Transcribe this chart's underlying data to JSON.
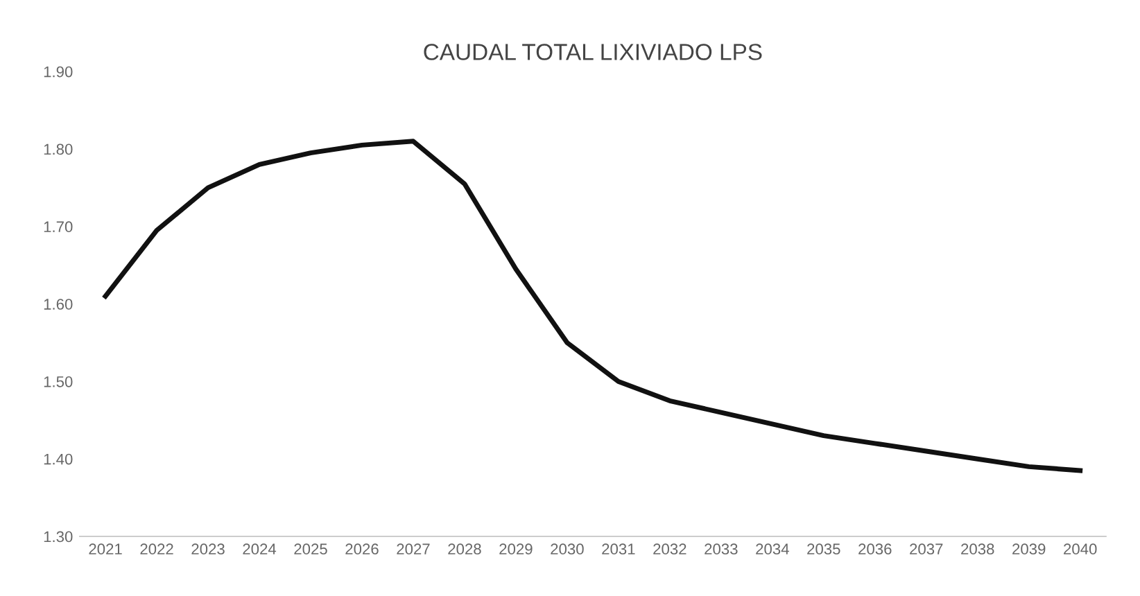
{
  "chart_data": {
    "type": "line",
    "title": "CAUDAL TOTAL LIXIVIADO LPS",
    "categories": [
      "2021",
      "2022",
      "2023",
      "2024",
      "2025",
      "2026",
      "2027",
      "2028",
      "2029",
      "2030",
      "2031",
      "2032",
      "2033",
      "2034",
      "2035",
      "2036",
      "2037",
      "2038",
      "2039",
      "2040"
    ],
    "series": [
      {
        "color": "#111111",
        "values": [
          1.61,
          1.695,
          1.75,
          1.78,
          1.795,
          1.805,
          1.81,
          1.755,
          1.645,
          1.55,
          1.5,
          1.475,
          1.46,
          1.445,
          1.43,
          1.42,
          1.41,
          1.4,
          1.39,
          1.385
        ]
      }
    ],
    "ylim": [
      1.3,
      1.9
    ],
    "yticks": [
      {
        "value": 1.3,
        "label": "1.30"
      },
      {
        "value": 1.4,
        "label": "1.40"
      },
      {
        "value": 1.5,
        "label": "1.50"
      },
      {
        "value": 1.6,
        "label": "1.60"
      },
      {
        "value": 1.7,
        "label": "1.70"
      },
      {
        "value": 1.8,
        "label": "1.80"
      },
      {
        "value": 1.9,
        "label": "1.90"
      }
    ],
    "grid": false,
    "marker": "none",
    "line_style": "solid"
  }
}
